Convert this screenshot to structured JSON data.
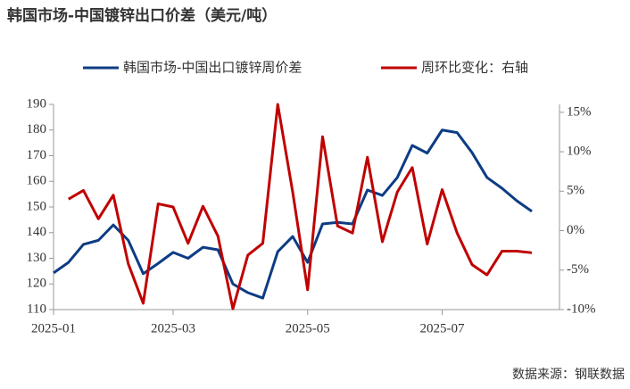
{
  "chart_data": {
    "type": "line",
    "title": "韩国市场-中国镀锌出口价差（美元/吨）",
    "source": "数据来源：钢联数据",
    "categories": [
      "2025-01",
      null,
      null,
      null,
      null,
      null,
      null,
      null,
      "2025-03",
      null,
      null,
      null,
      null,
      null,
      null,
      null,
      null,
      "2025-05",
      null,
      null,
      null,
      null,
      null,
      null,
      null,
      null,
      "2025-07",
      null,
      null,
      null,
      null,
      null,
      null
    ],
    "series": [
      {
        "name": "韩国市场-中国出口镀锌周价差",
        "color": "#0d3c84",
        "axis": "y",
        "values": [
          124.3,
          128.4,
          135.4,
          137,
          143,
          137,
          124,
          128,
          132.3,
          130,
          134.3,
          133.3,
          120,
          116.6,
          114.5,
          132.6,
          138.5,
          128.4,
          143.4,
          144,
          143.4,
          156.6,
          154.5,
          161.5,
          174,
          171,
          180,
          179,
          171.2,
          161.5,
          157.3,
          152.4,
          148.3
        ]
      },
      {
        "name": "周环比变化：右轴",
        "color": "#c00000",
        "axis": "y2",
        "values": [
          null,
          4.0,
          5.1,
          1.5,
          4.5,
          -4.2,
          -9.2,
          3.4,
          3.0,
          -1.6,
          3.1,
          -0.7,
          -9.9,
          -3.1,
          -1.6,
          16.0,
          4.9,
          -7.5,
          11.9,
          0.6,
          -0.3,
          9.3,
          -1.4,
          4.9,
          8.0,
          -1.7,
          5.2,
          -0.3,
          -4.3,
          -5.6,
          -2.6,
          -2.6,
          -2.8
        ]
      }
    ],
    "ylim": [
      110,
      190
    ],
    "yticks": [
      110,
      120,
      130,
      140,
      150,
      160,
      170,
      180,
      190
    ],
    "y2lim": [
      -10,
      16
    ],
    "y2ticks": [
      {
        "value": -10,
        "label": "-10%"
      },
      {
        "value": -5,
        "label": "-5%"
      },
      {
        "value": 0,
        "label": "0%"
      },
      {
        "value": 5,
        "label": "5%"
      },
      {
        "value": 10,
        "label": "10%"
      },
      {
        "value": 15,
        "label": "15%"
      }
    ],
    "grid": false,
    "legend": "top"
  }
}
